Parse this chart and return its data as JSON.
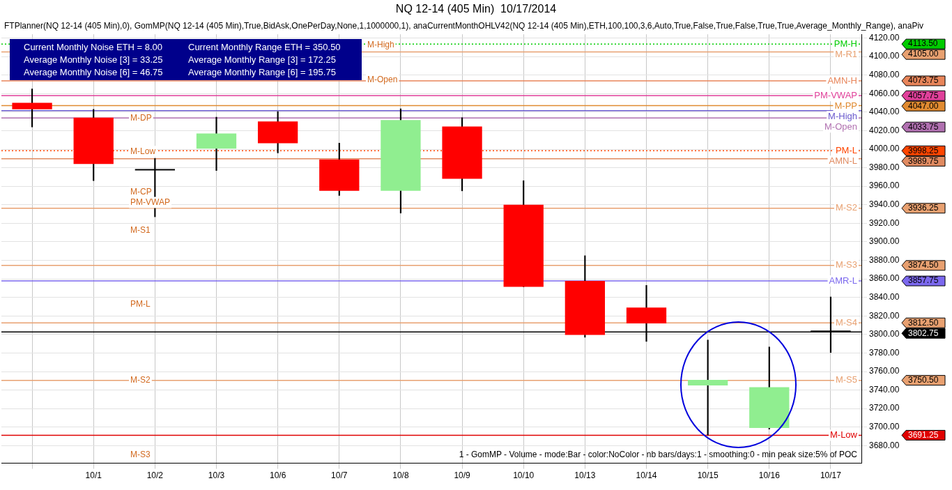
{
  "chart_data": {
    "type": "candlestick",
    "title": "NQ 12-14 (405 Min)  10/17/2014",
    "categories": [
      null,
      "10/1",
      "10/2",
      "10/3",
      "10/6",
      "10/7",
      "10/8",
      "10/9",
      "10/10",
      "10/13",
      "10/14",
      "10/15",
      "10/16",
      "10/17"
    ],
    "ohlc": [
      [
        4050,
        4065,
        4024,
        4043
      ],
      [
        4034,
        4043,
        3966,
        3984
      ],
      [
        3977,
        3990,
        3927,
        3977
      ],
      [
        4000.5,
        4034.5,
        3977,
        4017
      ],
      [
        4030,
        4040.5,
        3996,
        4006.5
      ],
      [
        3989,
        4006.5,
        3950,
        3955
      ],
      [
        3955,
        4043.5,
        3931,
        4031.5
      ],
      [
        4024.5,
        4034,
        3955,
        3968
      ],
      [
        3940,
        3966,
        3851.5,
        3851.5
      ],
      [
        3857.75,
        3885,
        3797,
        3799.5
      ],
      [
        3829,
        3853,
        3792.5,
        3812
      ],
      [
        3745,
        3794,
        3691.5,
        3751
      ],
      [
        3699,
        3786.5,
        3697.75,
        3743
      ],
      [
        3803,
        3840.5,
        3780.5,
        3802.75
      ]
    ],
    "colors": [
      "#ff0000",
      "#ff0000",
      "#000000",
      "#90ee90",
      "#ff0000",
      "#ff0000",
      "#90ee90",
      "#ff0000",
      "#ff0000",
      "#ff0000",
      "#ff0000",
      "#90ee90",
      "#90ee90",
      "#000000"
    ],
    "ylim": [
      3661,
      4124
    ],
    "yticks": [
      {
        "value": 3680,
        "label": "3680.00"
      },
      {
        "value": 3700,
        "label": "3700.00"
      },
      {
        "value": 3720,
        "label": "3720.00"
      },
      {
        "value": 3740,
        "label": "3740.00"
      },
      {
        "value": 3760,
        "label": "3760.00"
      },
      {
        "value": 3780,
        "label": "3780.00"
      },
      {
        "value": 3800,
        "label": "3800.00"
      },
      {
        "value": 3820,
        "label": "3820.00"
      },
      {
        "value": 3840,
        "label": "3840.00"
      },
      {
        "value": 3860,
        "label": "3860.00"
      },
      {
        "value": 3880,
        "label": "3880.00"
      },
      {
        "value": 3900,
        "label": "3900.00"
      },
      {
        "value": 3920,
        "label": "3920.00"
      },
      {
        "value": 3940,
        "label": "3940.00"
      },
      {
        "value": 3960,
        "label": "3960.00"
      },
      {
        "value": 3980,
        "label": "3980.00"
      },
      {
        "value": 4000,
        "label": "4000.00"
      },
      {
        "value": 4020,
        "label": "4020.00"
      },
      {
        "value": 4040,
        "label": "4040.00"
      },
      {
        "value": 4060,
        "label": "4060.00"
      },
      {
        "value": 4080,
        "label": "4080.00"
      },
      {
        "value": 4100,
        "label": "4100.00"
      },
      {
        "value": 4120,
        "label": "4120.00"
      }
    ],
    "grid": true,
    "legend": false,
    "ref_lines": [
      {
        "axis": "y",
        "value": 4113.5,
        "label": "PM-H",
        "color": "#00cc00",
        "line_style": "dotted"
      },
      {
        "axis": "y",
        "value": 4105,
        "label": "M-R1",
        "color": "#e8a070",
        "line_style": "solid"
      },
      {
        "axis": "y",
        "value": 4073.75,
        "label": "AMN-H",
        "color": "#e8855a",
        "line_style": "solid"
      },
      {
        "axis": "y",
        "value": 4057.75,
        "label": "PM-VWAP",
        "color": "#e0409a",
        "line_style": "solid"
      },
      {
        "axis": "y",
        "value": 4047,
        "label": "M-PP",
        "color": "#e08a30",
        "line_style": "solid"
      },
      {
        "axis": "y",
        "value": 4033.75,
        "label": "M-Open",
        "color": "#b070b0",
        "line_style": "solid"
      },
      {
        "axis": "y",
        "value": 3998.25,
        "label": "PM-L",
        "color": "#ff4500",
        "line_style": "dotted"
      },
      {
        "axis": "y",
        "value": 3989.75,
        "label": "AMN-L",
        "color": "#e08a60",
        "line_style": "solid"
      },
      {
        "axis": "y",
        "value": 3936.25,
        "label": "M-S2",
        "color": "#e8a070",
        "line_style": "solid"
      },
      {
        "axis": "y",
        "value": 3874.5,
        "label": "M-S3",
        "color": "#e8a070",
        "line_style": "solid"
      },
      {
        "axis": "y",
        "value": 3857.75,
        "label": "AMR-L",
        "color": "#7b68ee",
        "line_style": "solid"
      },
      {
        "axis": "y",
        "value": 3812.5,
        "label": "M-S4",
        "color": "#e8a070",
        "line_style": "solid"
      },
      {
        "axis": "y",
        "value": 3802.75,
        "label": null,
        "color": "#000000",
        "line_style": "solid"
      },
      {
        "axis": "y",
        "value": 3750.5,
        "label": "M-S5",
        "color": "#e8a070",
        "line_style": "solid"
      },
      {
        "axis": "y",
        "value": 3691.25,
        "label": "M-Low",
        "color": "#e00000",
        "line_style": "solid"
      },
      {
        "axis": "y",
        "value": 4041.5,
        "label": "M-High",
        "color": "#6a5acd",
        "line_style": "solid"
      }
    ],
    "annotations": [
      "FTPlanner(NQ 12-14 (405 Min),0), GomMP(NQ 12-14 (405 Min),True,BidAsk,OnePerDay,None,1,1000000,1), anaCurrentMonthOHLV42(NQ 12-14 (405 Min),ETH,100,100,3,6,Auto,True,False,True,False,True,True,Average_Monthly_Range), anaPiv",
      "Current Monthly Noise ETH = 8.00",
      "Average Monthly Noise [3] = 33.25",
      "Average Monthly Noise [6] = 46.75",
      "Current Monthly Range ETH = 350.50",
      "Average Monthly Range [3] = 172.25",
      "Average Monthly Range [6] = 195.75",
      "1 - GomMP - Volume - mode:Bar - color:NoColor - nb bars/days:1 - smoothing:0 - min peak size:5% of POC",
      "M-High",
      "M-Open",
      "M-DP",
      "M-Low",
      "M-CP",
      "PM-VWAP",
      "M-S1",
      "PM-L",
      "M-S2",
      "M-S3",
      "4113.50",
      "4105.00",
      "4073.75",
      "4057.75",
      "4047.00",
      "4033.75",
      "3998.25",
      "3989.75",
      "3936.25",
      "3874.50",
      "3857.75",
      "3812.50",
      "3802.75",
      "3750.50",
      "3691.25"
    ]
  }
}
